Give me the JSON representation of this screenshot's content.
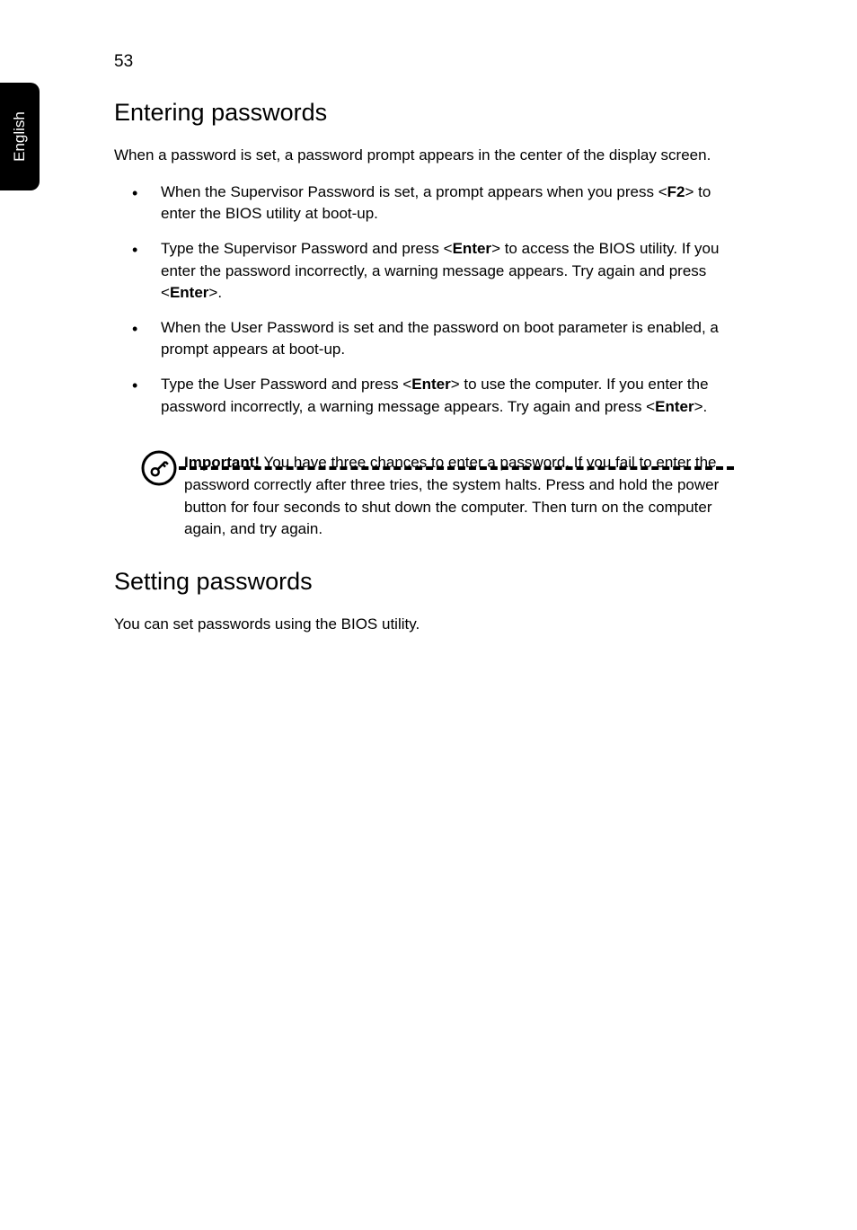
{
  "page": {
    "number": "53",
    "sidetab": "English"
  },
  "section1": {
    "heading": "Entering passwords",
    "intro": "When a password is set, a password prompt appears in the center of the display screen.",
    "bullets": [
      [
        {
          "t": "When the Supervisor Password is set, a prompt appears when you press <"
        },
        {
          "t": "F2",
          "b": true
        },
        {
          "t": "> to enter the BIOS utility at boot-up."
        }
      ],
      [
        {
          "t": "Type the Supervisor Password and press <"
        },
        {
          "t": "Enter",
          "b": true
        },
        {
          "t": "> to access the BIOS utility. If you enter the password incorrectly, a warning message appears. Try again and press <"
        },
        {
          "t": "Enter",
          "b": true
        },
        {
          "t": ">."
        }
      ],
      [
        {
          "t": "When the User Password is set and the password on boot parameter is enabled, a prompt appears at boot-up."
        }
      ],
      [
        {
          "t": "Type the User Password and press <"
        },
        {
          "t": "Enter",
          "b": true
        },
        {
          "t": "> to use the computer. If you enter the password incorrectly, a warning message appears. Try again and press <"
        },
        {
          "t": "Enter",
          "b": true
        },
        {
          "t": ">."
        }
      ]
    ],
    "callout": [
      {
        "t": "Important!",
        "b": true
      },
      {
        "t": " You have three chances to enter a password. If you fail to enter the password correctly after three tries, the system halts. Press and hold the power button for four seconds to shut down the computer. Then turn on the computer again, and try again."
      }
    ]
  },
  "section2": {
    "heading": "Setting passwords",
    "body": "You can set passwords using the BIOS utility."
  }
}
